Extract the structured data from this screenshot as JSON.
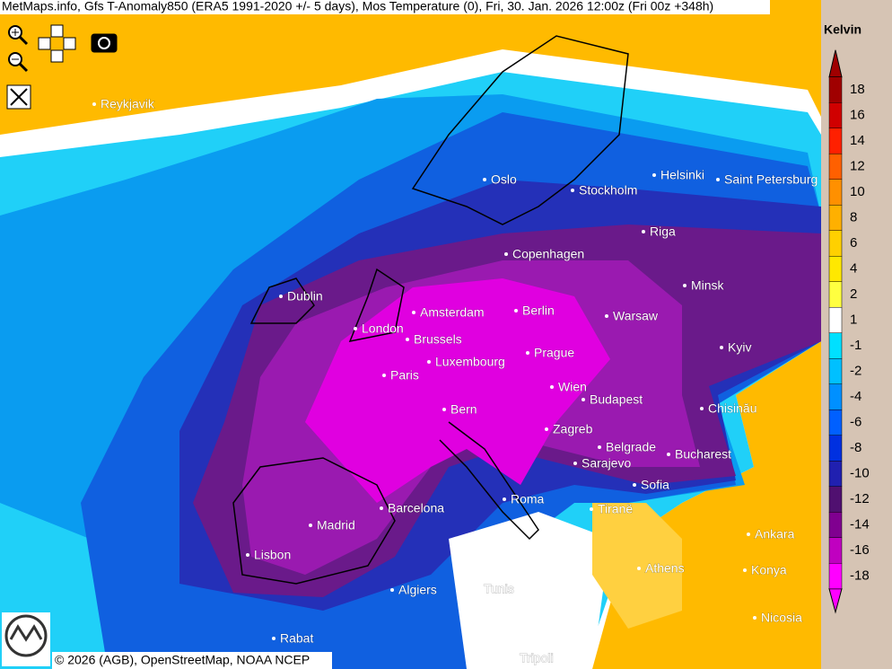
{
  "header": {
    "title": "MetMaps.info, Gfs T-Anomaly850 (ERA5 1991-2020 +/- 5 days), Mos Temperature (0), Fri, 30. Jan. 2026 12:00z (Fri 00z +348h)"
  },
  "legend": {
    "unit": "Kelvin",
    "ticks": [
      18,
      16,
      14,
      12,
      10,
      8,
      6,
      4,
      2,
      1,
      -1,
      -2,
      -4,
      -6,
      -8,
      -10,
      -12,
      -14,
      -16,
      -18
    ]
  },
  "cities": [
    "Reykjavik",
    "Oslo",
    "Stockholm",
    "Helsinki",
    "Saint Petersburg",
    "Riga",
    "Copenhagen",
    "Dublin",
    "Minsk",
    "Amsterdam",
    "Berlin",
    "Warsaw",
    "London",
    "Brussels",
    "Kyiv",
    "Prague",
    "Luxembourg",
    "Paris",
    "Wien",
    "Budapest",
    "Chisinău",
    "Bern",
    "Zagreb",
    "Belgrade",
    "Bucharest",
    "Sarajevo",
    "Sofia",
    "Roma",
    "Barcelona",
    "Tiranë",
    "Madrid",
    "Ankara",
    "Lisbon",
    "Athens",
    "Konya",
    "Algiers",
    "Tunis",
    "Nicosia",
    "Rabat",
    "Tripoli"
  ],
  "attribution": "© 2026 (AGB), OpenStreetMap, NOAA NCEP"
}
